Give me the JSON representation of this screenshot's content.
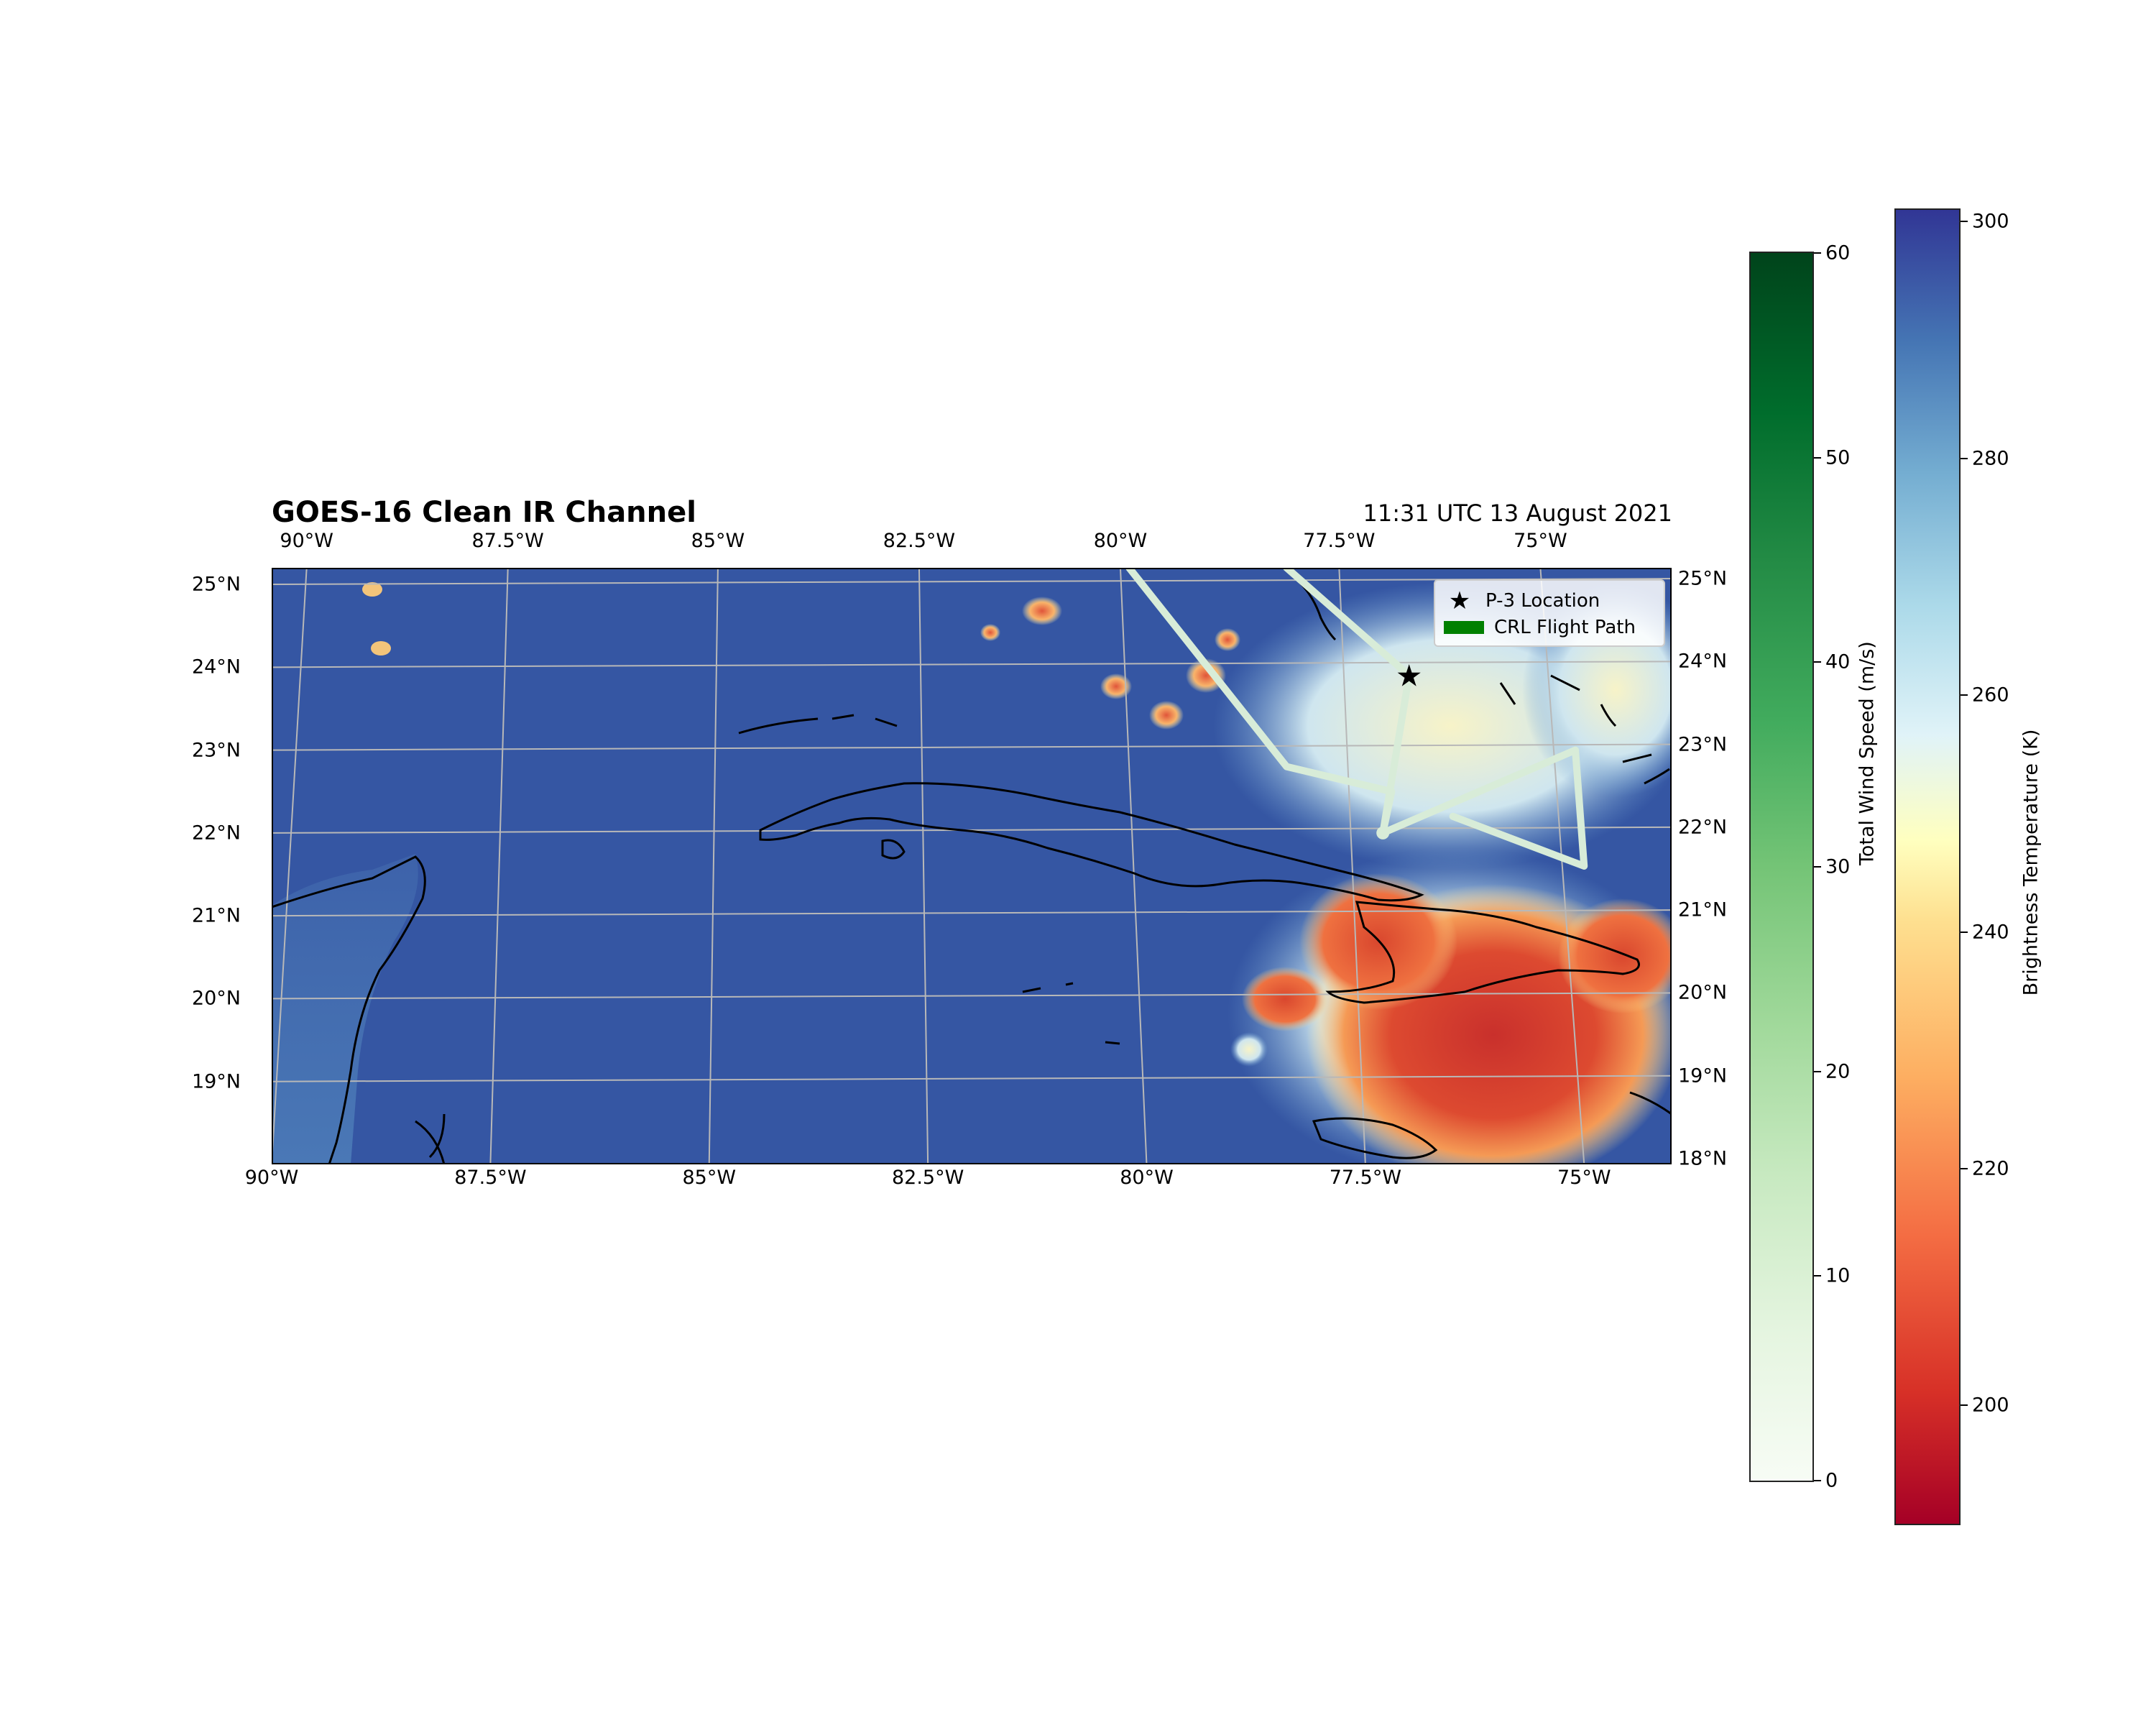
{
  "title": "GOES-16 Clean IR Channel",
  "timestamp": "11:31 UTC 13 August 2021",
  "map": {
    "lon_range": [
      -90,
      -74
    ],
    "lat_range": [
      18,
      25.2
    ],
    "x_ticks_top": [
      {
        "label": "90°W",
        "lon": -89.6
      },
      {
        "label": "87.5°W",
        "lon": -87.3
      },
      {
        "label": "85°W",
        "lon": -84.9
      },
      {
        "label": "82.5°W",
        "lon": -82.6
      },
      {
        "label": "80°W",
        "lon": -80.3
      },
      {
        "label": "77.5°W",
        "lon": -77.8
      },
      {
        "label": "75°W",
        "lon": -75.5
      }
    ],
    "x_ticks_bottom": [
      {
        "label": "90°W",
        "lon": -90
      },
      {
        "label": "87.5°W",
        "lon": -87.5
      },
      {
        "label": "85°W",
        "lon": -85
      },
      {
        "label": "82.5°W",
        "lon": -82.5
      },
      {
        "label": "80°W",
        "lon": -80
      },
      {
        "label": "77.5°W",
        "lon": -77.5
      },
      {
        "label": "75°W",
        "lon": -75
      }
    ],
    "y_ticks_left": [
      {
        "label": "25°N",
        "lat": 25
      },
      {
        "label": "24°N",
        "lat": 24
      },
      {
        "label": "23°N",
        "lat": 23
      },
      {
        "label": "22°N",
        "lat": 22
      },
      {
        "label": "21°N",
        "lat": 21
      },
      {
        "label": "20°N",
        "lat": 20
      },
      {
        "label": "19°N",
        "lat": 19
      }
    ],
    "y_ticks_right": [
      {
        "label": "25°N",
        "lat": 25
      },
      {
        "label": "24°N",
        "lat": 24
      },
      {
        "label": "23°N",
        "lat": 23
      },
      {
        "label": "22°N",
        "lat": 22
      },
      {
        "label": "21°N",
        "lat": 21
      },
      {
        "label": "20°N",
        "lat": 20
      },
      {
        "label": "19°N",
        "lat": 19
      },
      {
        "label": "18°N",
        "lat": 18
      }
    ],
    "p3_location": {
      "lon": -77.0,
      "lat": 23.9
    },
    "flight_path": [
      {
        "lon": -80.2,
        "lat": 25.2
      },
      {
        "lon": -78.4,
        "lat": 22.8
      },
      {
        "lon": -77.2,
        "lat": 22.5
      },
      {
        "lon": -77.3,
        "lat": 22.0
      },
      {
        "lon": -77.0,
        "lat": 23.9
      },
      {
        "lon": -78.4,
        "lat": 25.2
      }
    ],
    "flight_path_2": [
      {
        "lon": -77.3,
        "lat": 22.0
      },
      {
        "lon": -75.1,
        "lat": 23.0
      },
      {
        "lon": -75.0,
        "lat": 21.6
      },
      {
        "lon": -76.5,
        "lat": 22.2
      }
    ],
    "colors": {
      "ocean": "#3a5ea8",
      "gulf": "#4470b0",
      "flight_path": "#d8ecd8",
      "coast": "#000000",
      "grid": "#b8b8b8"
    }
  },
  "legend": {
    "p3_label": "P-3 Location",
    "flight_label": "CRL Flight Path"
  },
  "colorbar_wind": {
    "label": "Total Wind Speed (m/s)",
    "min": 0,
    "max": 60,
    "ticks": [
      "0",
      "10",
      "20",
      "30",
      "40",
      "50",
      "60"
    ],
    "colormap": "Greens"
  },
  "colorbar_bt": {
    "label": "Brightness Temperature (K)",
    "min": 190,
    "max": 301,
    "ticks": [
      "200",
      "220",
      "240",
      "260",
      "280",
      "300"
    ],
    "colormap": "RdYlBu"
  }
}
